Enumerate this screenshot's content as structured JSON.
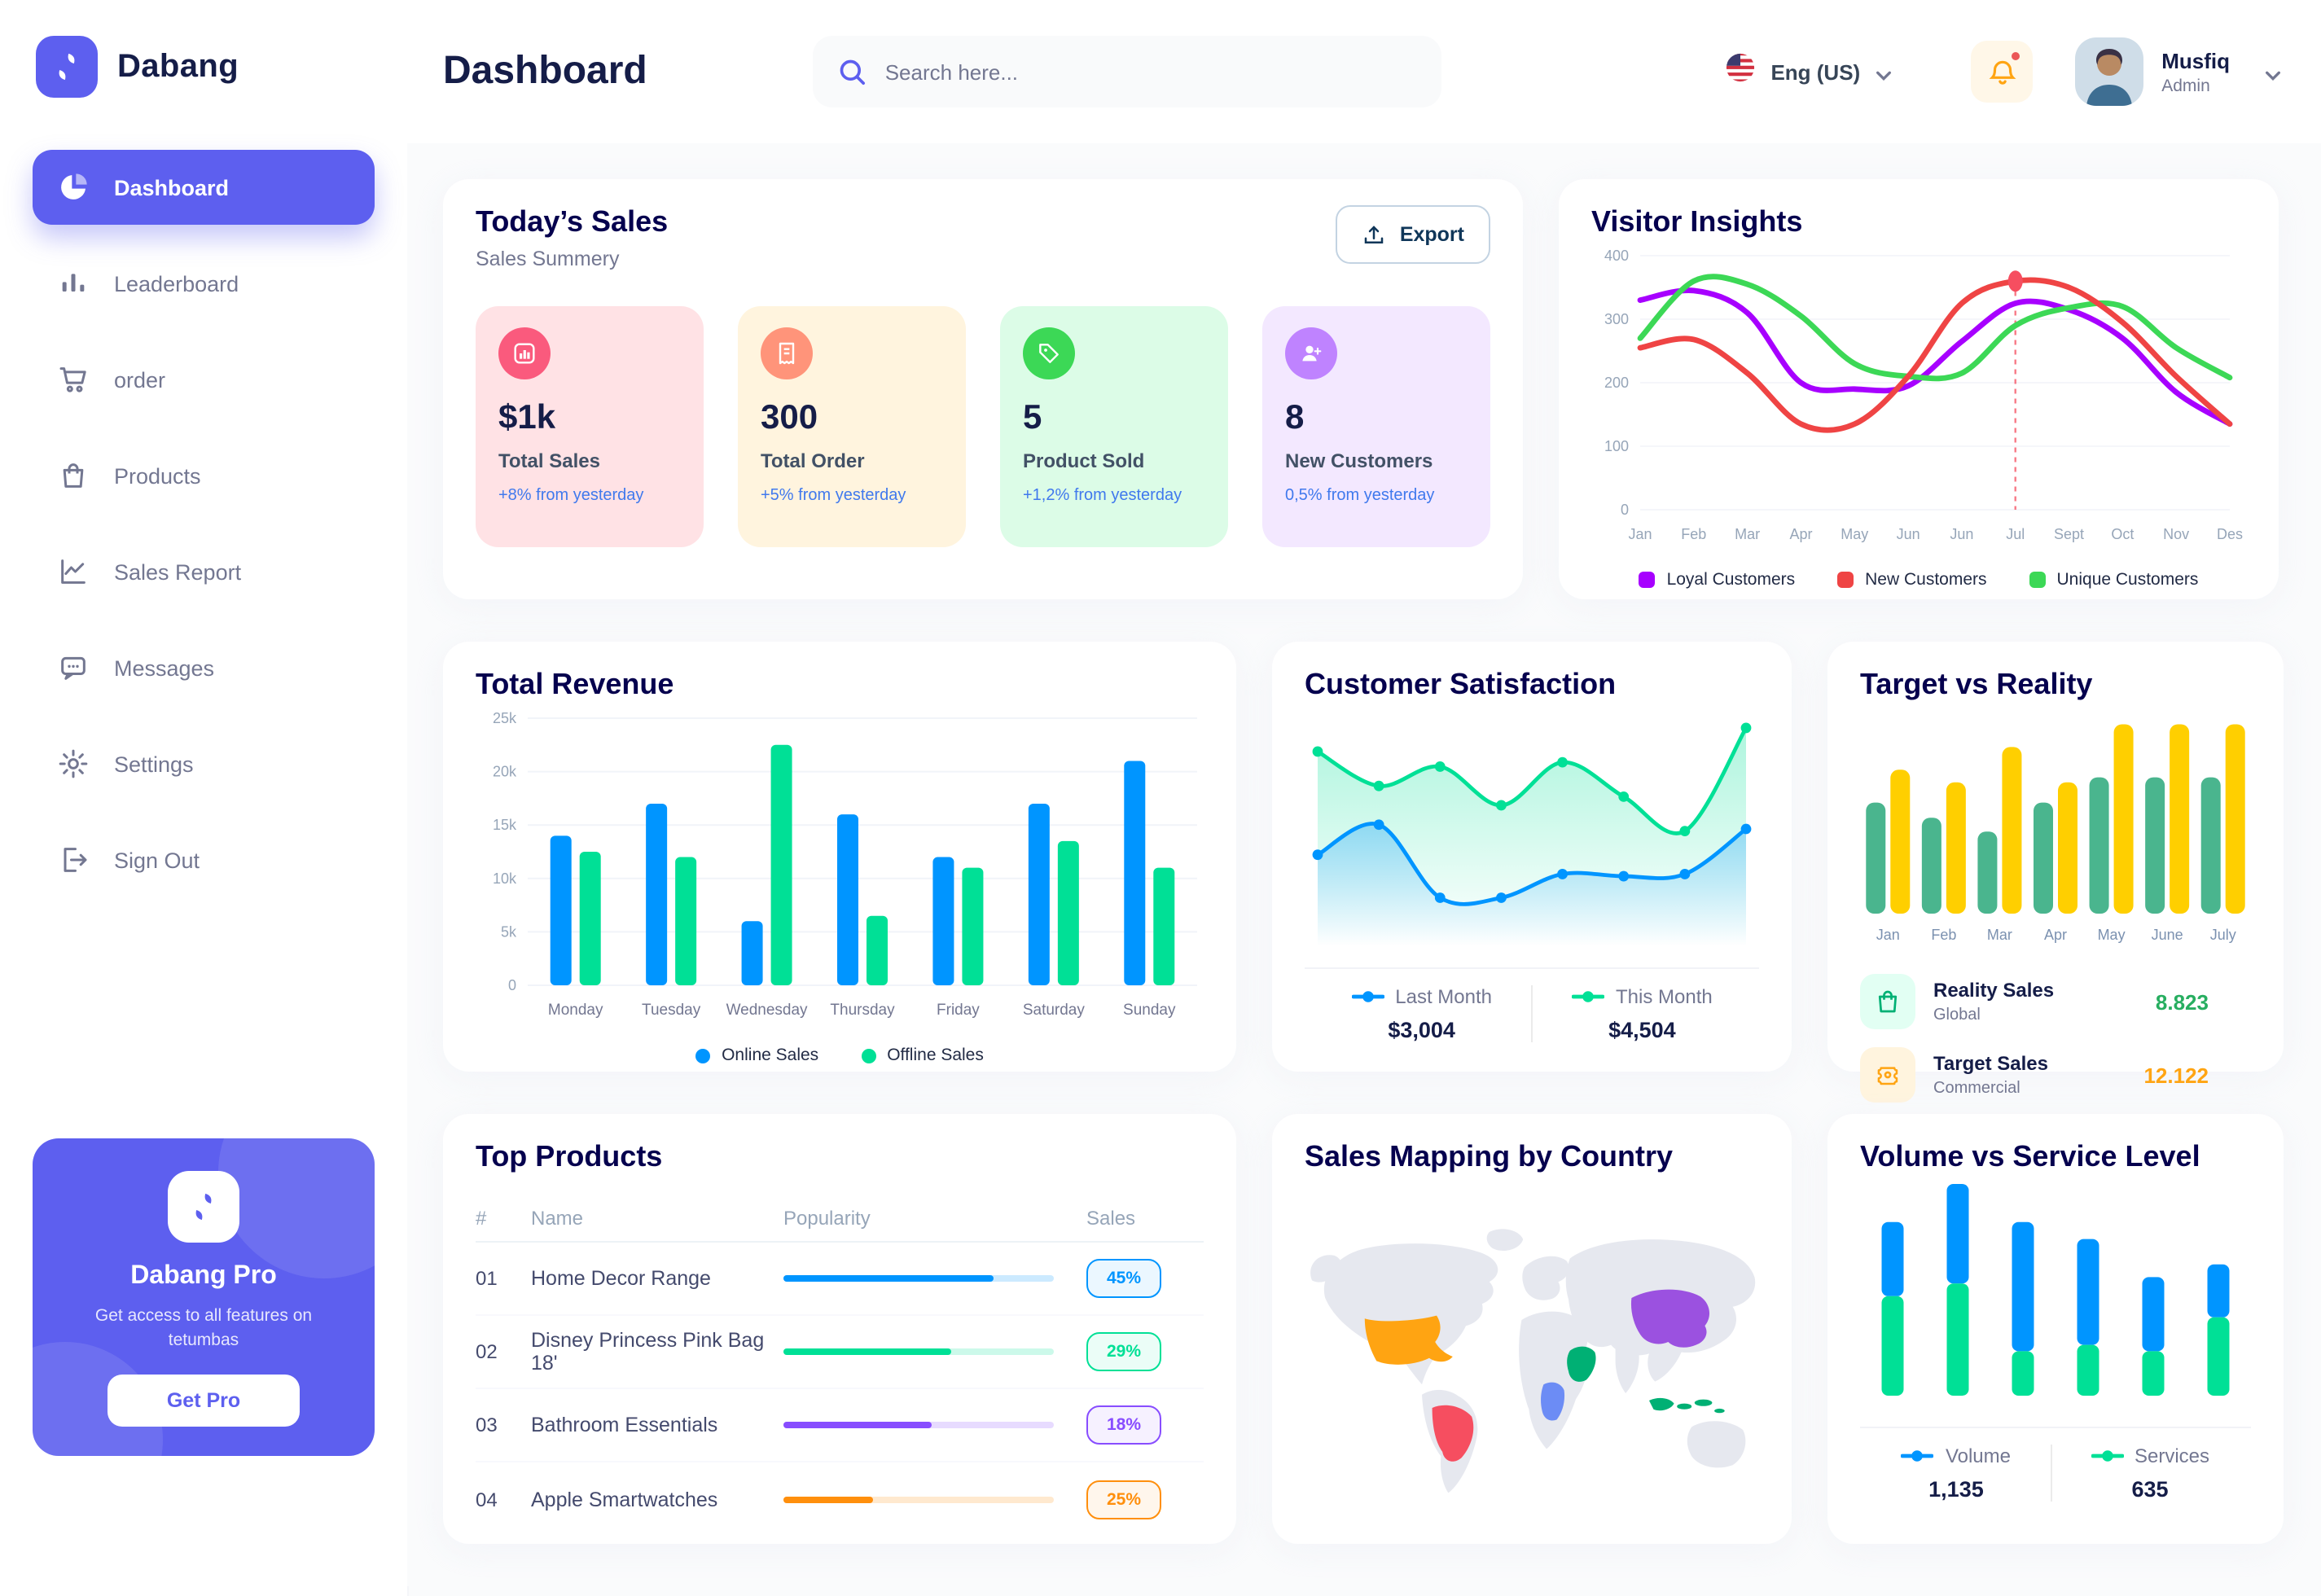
{
  "brand": {
    "name": "Dabang",
    "color": "#5D5FEF"
  },
  "header": {
    "page_title": "Dashboard",
    "search_placeholder": "Search here...",
    "language": "Eng (US)",
    "notification": {
      "icon": "bell-icon",
      "unread_dot": true
    },
    "user": {
      "name": "Musfiq",
      "role": "Admin"
    }
  },
  "sidebar": {
    "items": [
      {
        "label": "Dashboard",
        "icon": "pie-chart-icon",
        "active": true
      },
      {
        "label": "Leaderboard",
        "icon": "leaderboard-icon",
        "active": false
      },
      {
        "label": "order",
        "icon": "cart-icon",
        "active": false
      },
      {
        "label": "Products",
        "icon": "bag-icon",
        "active": false
      },
      {
        "label": "Sales Report",
        "icon": "chart-line-icon",
        "active": false
      },
      {
        "label": "Messages",
        "icon": "chat-icon",
        "active": false
      },
      {
        "label": "Settings",
        "icon": "gear-icon",
        "active": false
      },
      {
        "label": "Sign Out",
        "icon": "signout-icon",
        "active": false
      }
    ],
    "promo": {
      "title": "Dabang Pro",
      "subtitle": "Get access to all features on tetumbas",
      "button": "Get Pro"
    }
  },
  "sections": {
    "today_sales": {
      "title": "Today’s Sales",
      "subtitle": "Sales Summery",
      "export_label": "Export",
      "cards": [
        {
          "value": "$1k",
          "label": "Total Sales",
          "delta": "+8% from yesterday",
          "bg": "#FFE2E5",
          "icon_bg": "#FA5A7D",
          "icon": "stat-bar-icon"
        },
        {
          "value": "300",
          "label": "Total Order",
          "delta": "+5% from yesterday",
          "bg": "#FFF4DE",
          "icon_bg": "#FF947A",
          "icon": "stat-order-icon"
        },
        {
          "value": "5",
          "label": "Product Sold",
          "delta": "+1,2% from yesterday",
          "bg": "#DCFCE7",
          "icon_bg": "#3CD856",
          "icon": "stat-tag-icon"
        },
        {
          "value": "8",
          "label": "New Customers",
          "delta": "0,5% from yesterday",
          "bg": "#F3E8FF",
          "icon_bg": "#BF83FF",
          "icon": "stat-user-icon"
        }
      ]
    },
    "visitor_insights": {
      "title": "Visitor Insights"
    },
    "total_revenue": {
      "title": "Total Revenue"
    },
    "customer_satisfaction": {
      "title": "Customer Satisfaction"
    },
    "target_vs_reality": {
      "title": "Target vs Reality",
      "legend": [
        {
          "title": "Reality Sales",
          "subtitle": "Global",
          "value": "8.823",
          "value_color": "#27AE60",
          "icon": "bag-tile-icon",
          "icon_bg": "#E2FFF3",
          "icon_color": "#00B074"
        },
        {
          "title": "Target Sales",
          "subtitle": "Commercial",
          "value": "12.122",
          "value_color": "#FFA412",
          "icon": "ticket-tile-icon",
          "icon_bg": "#FFF4DE",
          "icon_color": "#FFA412"
        }
      ]
    },
    "top_products": {
      "title": "Top Products",
      "headers": [
        "#",
        "Name",
        "Popularity",
        "Sales"
      ],
      "rows": [
        {
          "num": "01",
          "name": "Home Decor Range",
          "popularity_pct": 78,
          "sales": "45%",
          "color": "#0095FF"
        },
        {
          "num": "02",
          "name": "Disney Princess Pink Bag 18'",
          "popularity_pct": 62,
          "sales": "29%",
          "color": "#00E096"
        },
        {
          "num": "03",
          "name": "Bathroom Essentials",
          "popularity_pct": 55,
          "sales": "18%",
          "color": "#884DFF"
        },
        {
          "num": "04",
          "name": "Apple Smartwatches",
          "popularity_pct": 33,
          "sales": "25%",
          "color": "#FF8F0D"
        }
      ]
    },
    "sales_map": {
      "title": "Sales Mapping by Country",
      "countries": [
        {
          "name": "United States",
          "color": "#FFA412"
        },
        {
          "name": "Brazil",
          "color": "#F64E60"
        },
        {
          "name": "Saudi Arabia",
          "color": "#00B074"
        },
        {
          "name": "DR Congo",
          "color": "#6C8CF5"
        },
        {
          "name": "China",
          "color": "#9B51E0"
        },
        {
          "name": "Indonesia",
          "color": "#00B074"
        }
      ]
    },
    "volume_service": {
      "title": "Volume vs Service Level"
    }
  },
  "chart_data": [
    {
      "key": "visitor_insights",
      "type": "line",
      "title": "Visitor Insights",
      "x": [
        "Jan",
        "Feb",
        "Mar",
        "Apr",
        "May",
        "Jun",
        "Jun",
        "Jul",
        "Sept",
        "Oct",
        "Nov",
        "Des"
      ],
      "y_ticks": [
        400,
        300,
        200,
        100,
        0
      ],
      "ylim": [
        0,
        400
      ],
      "grid": true,
      "legend_position": "bottom",
      "series": [
        {
          "name": "Loyal Customers",
          "color": "#A700FF",
          "values": [
            330,
            345,
            310,
            200,
            190,
            195,
            265,
            325,
            315,
            270,
            185,
            135
          ]
        },
        {
          "name": "New Customers",
          "color": "#EF4444",
          "values": [
            255,
            268,
            215,
            135,
            135,
            210,
            325,
            360,
            350,
            295,
            210,
            135
          ]
        },
        {
          "name": "Unique Customers",
          "color": "#3CD856",
          "values": [
            270,
            360,
            355,
            305,
            230,
            210,
            215,
            290,
            318,
            320,
            255,
            208
          ]
        }
      ],
      "highlight": {
        "x_index": 7,
        "x_label": "Jul",
        "series": "New Customers",
        "value": 360
      }
    },
    {
      "key": "total_revenue",
      "type": "bar",
      "title": "Total Revenue",
      "x": [
        "Monday",
        "Tuesday",
        "Wednesday",
        "Thursday",
        "Friday",
        "Saturday",
        "Sunday"
      ],
      "y_ticks": [
        "25k",
        "20k",
        "15k",
        "10k",
        "5k",
        "0"
      ],
      "ylim": [
        0,
        25
      ],
      "unit": "k",
      "grid": true,
      "legend_position": "bottom",
      "series": [
        {
          "name": "Online Sales",
          "color": "#0095FF",
          "values": [
            14,
            17,
            6,
            16,
            12,
            17,
            21
          ]
        },
        {
          "name": "Offline Sales",
          "color": "#00E096",
          "values": [
            12.5,
            12,
            22.5,
            6.5,
            11,
            13.5,
            11
          ]
        }
      ]
    },
    {
      "key": "customer_satisfaction",
      "type": "area",
      "title": "Customer Satisfaction",
      "x_count": 8,
      "ylim": [
        0,
        100
      ],
      "legend_position": "bottom",
      "series": [
        {
          "name": "Last Month",
          "color": "#0095FF",
          "total": "$3,004",
          "values": [
            38,
            52,
            18,
            18,
            29,
            28,
            29,
            50
          ]
        },
        {
          "name": "This Month",
          "color": "#00E096",
          "total": "$4,504",
          "values": [
            86,
            70,
            79,
            61,
            81,
            65,
            49,
            97
          ]
        }
      ]
    },
    {
      "key": "target_vs_reality",
      "type": "bar",
      "title": "Target vs Reality",
      "x": [
        "Jan",
        "Feb",
        "Mar",
        "Apr",
        "May",
        "June",
        "July"
      ],
      "ylim": [
        0,
        16
      ],
      "legend_position": "bottom",
      "series": [
        {
          "name": "Reality Sales",
          "color": "#4AB58E",
          "values": [
            8.8,
            7.6,
            6.5,
            8.8,
            10.8,
            10.8,
            10.8
          ]
        },
        {
          "name": "Target Sales",
          "color": "#FFCF00",
          "values": [
            11.4,
            10.4,
            13.2,
            10.4,
            15,
            15,
            15
          ]
        }
      ]
    },
    {
      "key": "volume_service",
      "type": "stacked-bar",
      "title": "Volume vs Service Level",
      "x_count": 6,
      "ylim": [
        0,
        100
      ],
      "legend_position": "bottom",
      "series": [
        {
          "name": "Volume",
          "color": "#0095FF",
          "total": "1,135",
          "values": [
            35,
            47,
            61,
            50,
            35,
            25
          ]
        },
        {
          "name": "Services",
          "color": "#00E096",
          "total": "635",
          "values": [
            47,
            53,
            21,
            24,
            21,
            37
          ]
        }
      ]
    }
  ]
}
